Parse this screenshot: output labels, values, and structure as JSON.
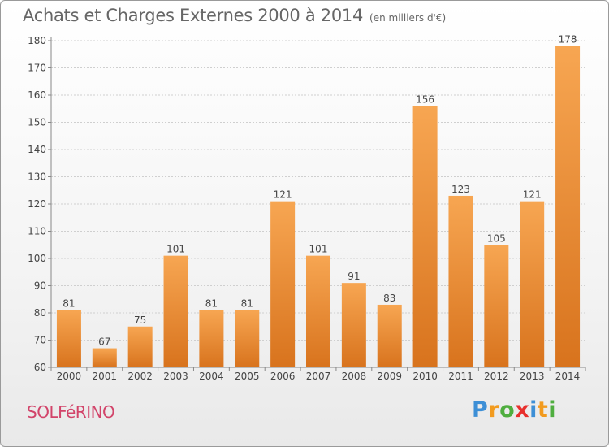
{
  "title": "Achats et Charges Externes 2000 à 2014",
  "subtitle": "(en milliers d'€)",
  "place": "SOLFéRINO",
  "brand": {
    "letters": [
      "P",
      "r",
      "o",
      "x",
      "i",
      "t",
      "i"
    ],
    "colors": [
      "#3d8fd6",
      "#f29b1f",
      "#4fae3f",
      "#e8302d",
      "#3d8fd6",
      "#f29b1f",
      "#4fae3f"
    ]
  },
  "colors": {
    "bar_top": "#f7a652",
    "bar_bottom": "#d8731d",
    "grid": "#cfcfcf",
    "axis": "#888888"
  },
  "chart_data": {
    "type": "bar",
    "title": "Achats et Charges Externes 2000 à 2014",
    "subtitle": "(en milliers d'€)",
    "xlabel": "",
    "ylabel": "",
    "categories": [
      "2000",
      "2001",
      "2002",
      "2003",
      "2004",
      "2005",
      "2006",
      "2007",
      "2008",
      "2009",
      "2010",
      "2011",
      "2012",
      "2013",
      "2014"
    ],
    "values": [
      81,
      67,
      75,
      101,
      81,
      81,
      121,
      101,
      91,
      83,
      156,
      123,
      105,
      121,
      178
    ],
    "ylim": [
      60,
      180
    ],
    "yticks": [
      60,
      70,
      80,
      90,
      100,
      110,
      120,
      130,
      140,
      150,
      160,
      170,
      180
    ],
    "grid": true,
    "legend": "none"
  }
}
